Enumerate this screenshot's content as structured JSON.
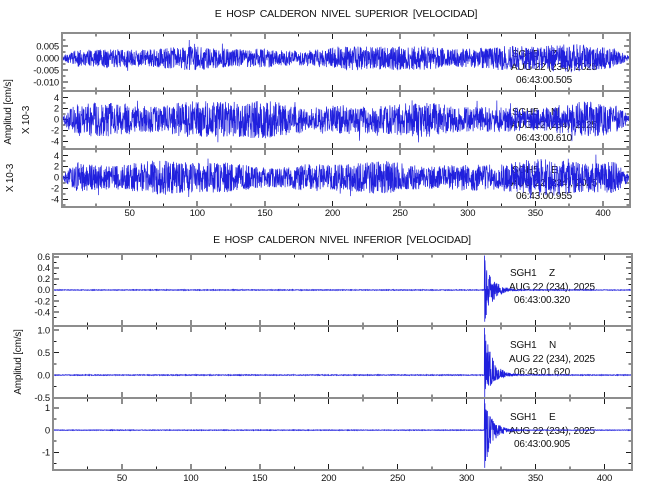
{
  "colors": {
    "trace": "#2020dd",
    "frame": "#8d8d8d",
    "tick": "#1b1b1b",
    "text": "#101010",
    "background": "#ffffff"
  },
  "chart_data": [
    {
      "type": "line",
      "title": "E HOSP CALDERON NIVEL SUPERIOR [VELOCIDAD]",
      "ylabel": "Amplitud [cm/s]",
      "xlabel": "",
      "grid": false,
      "xlim": [
        0,
        420
      ],
      "xtick_values": [
        50,
        100,
        150,
        200,
        250,
        300,
        350,
        400
      ],
      "xtick_labels": [
        "50",
        "100",
        "150",
        "200",
        "250",
        "300",
        "350",
        "400"
      ],
      "xminor_interval": 25,
      "channels": [
        {
          "station": "SGH5",
          "component": "Z",
          "date": "AUG 22 (234), 2025",
          "start_time": "06:43:00.505",
          "scale_label": "",
          "ytick_labels": [
            "0.005",
            "0.000",
            "-0.005",
            "-0.010"
          ],
          "ytick_values": [
            0.005,
            0.0,
            -0.005,
            -0.01
          ],
          "ylim": [
            -0.0137,
            0.0105
          ],
          "signal": {
            "kind": "noise",
            "amplitude": 0.0057,
            "seed": 11
          }
        },
        {
          "station": "SGH5",
          "component": "N",
          "date": "AUG 22 (234), 2025",
          "start_time": "06:43:00.610",
          "scale_label": "X 10-3",
          "ytick_labels": [
            "4",
            "2",
            "0",
            "-2",
            "-4"
          ],
          "ytick_values": [
            0.004,
            0.002,
            0.0,
            -0.002,
            -0.004
          ],
          "ylim": [
            -0.0054,
            0.0052
          ],
          "signal": {
            "kind": "noise",
            "amplitude": 0.0036,
            "seed": 12
          }
        },
        {
          "station": "SGH5",
          "component": "E",
          "date": "AUG 22 (234), 2025",
          "start_time": "06:43:00.955",
          "scale_label": "X 10-3",
          "ytick_labels": [
            "4",
            "2",
            "0",
            "-2",
            "-4"
          ],
          "ytick_values": [
            0.004,
            0.002,
            0.0,
            -0.002,
            -0.004
          ],
          "ylim": [
            -0.0054,
            0.0052
          ],
          "signal": {
            "kind": "noise",
            "amplitude": 0.0034,
            "seed": 13
          }
        }
      ]
    },
    {
      "type": "line",
      "title": "E HOSP CALDERON NIVEL INFERIOR [VELOCIDAD]",
      "ylabel": "Amplitud [cm/s]",
      "xlabel": "",
      "grid": false,
      "xlim": [
        0,
        420
      ],
      "xtick_values": [
        50,
        100,
        150,
        200,
        250,
        300,
        350,
        400
      ],
      "xtick_labels": [
        "50",
        "100",
        "150",
        "200",
        "250",
        "300",
        "350",
        "400"
      ],
      "xminor_interval": 25,
      "channels": [
        {
          "station": "SGH1",
          "component": "Z",
          "date": "AUG 22 (234), 2025",
          "start_time": "06:43:00.320",
          "scale_label": "",
          "ytick_labels": [
            "0.6",
            "0.4",
            "0.2",
            "0.0",
            "-0.2",
            "-0.4"
          ],
          "ytick_values": [
            0.6,
            0.4,
            0.2,
            0.0,
            -0.2,
            -0.4
          ],
          "ylim": [
            -0.65,
            0.65
          ],
          "signal": {
            "kind": "event",
            "noise_amplitude": 0.006,
            "event_time_s": 313,
            "peak_amplitude": 0.63,
            "peak_negative": -0.58,
            "decay_tau_s": 6,
            "coda_end_s": 350,
            "seed": 21
          }
        },
        {
          "station": "SGH1",
          "component": "N",
          "date": "AUG 22 (234), 2025",
          "start_time": "06:43:01.620",
          "scale_label": "",
          "ytick_labels": [
            "1.0",
            "0.5",
            "0.0",
            "-0.5"
          ],
          "ytick_values": [
            1.0,
            0.5,
            0.0,
            -0.5
          ],
          "ylim": [
            -0.51,
            1.09
          ],
          "signal": {
            "kind": "event",
            "noise_amplitude": 0.008,
            "event_time_s": 313,
            "peak_amplitude": 1.06,
            "peak_negative": -0.5,
            "decay_tau_s": 6,
            "coda_end_s": 350,
            "seed": 22
          }
        },
        {
          "station": "SGH1",
          "component": "E",
          "date": "AUG 22 (234), 2025",
          "start_time": "06:43:00.905",
          "scale_label": "",
          "ytick_labels": [
            "1",
            "0",
            "-1"
          ],
          "ytick_values": [
            1.0,
            0.0,
            -1.0
          ],
          "ylim": [
            -1.8,
            1.45
          ],
          "signal": {
            "kind": "event",
            "noise_amplitude": 0.013,
            "event_time_s": 313,
            "peak_amplitude": 1.42,
            "peak_negative": -1.72,
            "decay_tau_s": 6,
            "coda_end_s": 350,
            "seed": 23
          }
        }
      ]
    }
  ]
}
